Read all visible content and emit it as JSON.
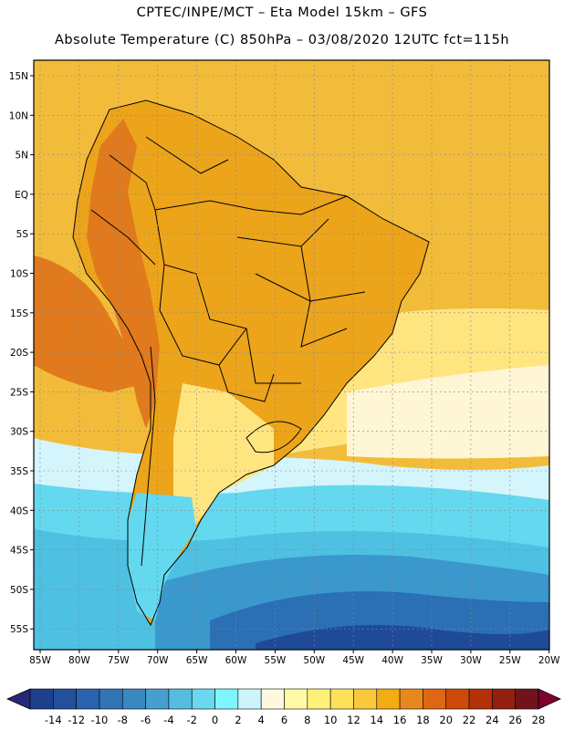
{
  "header": {
    "title_line1": "CPTEC/INPE/MCT –  Eta Model 15km – GFS",
    "title_line2": "Absolute Temperature (C) 850hPa – 03/08/2020 12UTC fct=115h"
  },
  "axes": {
    "lat_labels": [
      "15N",
      "10N",
      "5N",
      "EQ",
      "5S",
      "10S",
      "15S",
      "20S",
      "25S",
      "30S",
      "35S",
      "40S",
      "45S",
      "50S",
      "55S"
    ],
    "lon_labels": [
      "85W",
      "80W",
      "75W",
      "70W",
      "65W",
      "60W",
      "55W",
      "50W",
      "45W",
      "40W",
      "35W",
      "30W",
      "25W",
      "20W"
    ]
  },
  "colorbar": {
    "labels": [
      "-14",
      "-12",
      "-10",
      "-8",
      "-6",
      "-4",
      "-2",
      "0",
      "2",
      "4",
      "6",
      "8",
      "10",
      "12",
      "14",
      "16",
      "18",
      "20",
      "22",
      "24",
      "26",
      "28"
    ],
    "colors": [
      "#1d3f8c",
      "#23509c",
      "#2a62ad",
      "#3074b6",
      "#3a88c2",
      "#46a0cf",
      "#55bde0",
      "#6ad8ee",
      "#7ef6ff",
      "#cdf4fb",
      "#fff8e0",
      "#fffaa8",
      "#fff07a",
      "#ffe05a",
      "#fbc83c",
      "#f2ad14",
      "#e8881c",
      "#df6612",
      "#cd4a0a",
      "#b43008",
      "#922010",
      "#70141a"
    ],
    "under_color": "#282878",
    "over_color": "#800030"
  },
  "map": {
    "ocean_north_color": "#f2bc3a",
    "land_color": "#eca41a",
    "andes_color": "#e07a1c",
    "cool_color": "#ffe580",
    "south_colors": [
      "#fff6d6",
      "#d4f5fb",
      "#64d8ee",
      "#4ec0e2",
      "#3a98cc",
      "#2b6fb4",
      "#1f4a98"
    ],
    "boundary_color": "#000000",
    "grid_color": "#888888"
  }
}
